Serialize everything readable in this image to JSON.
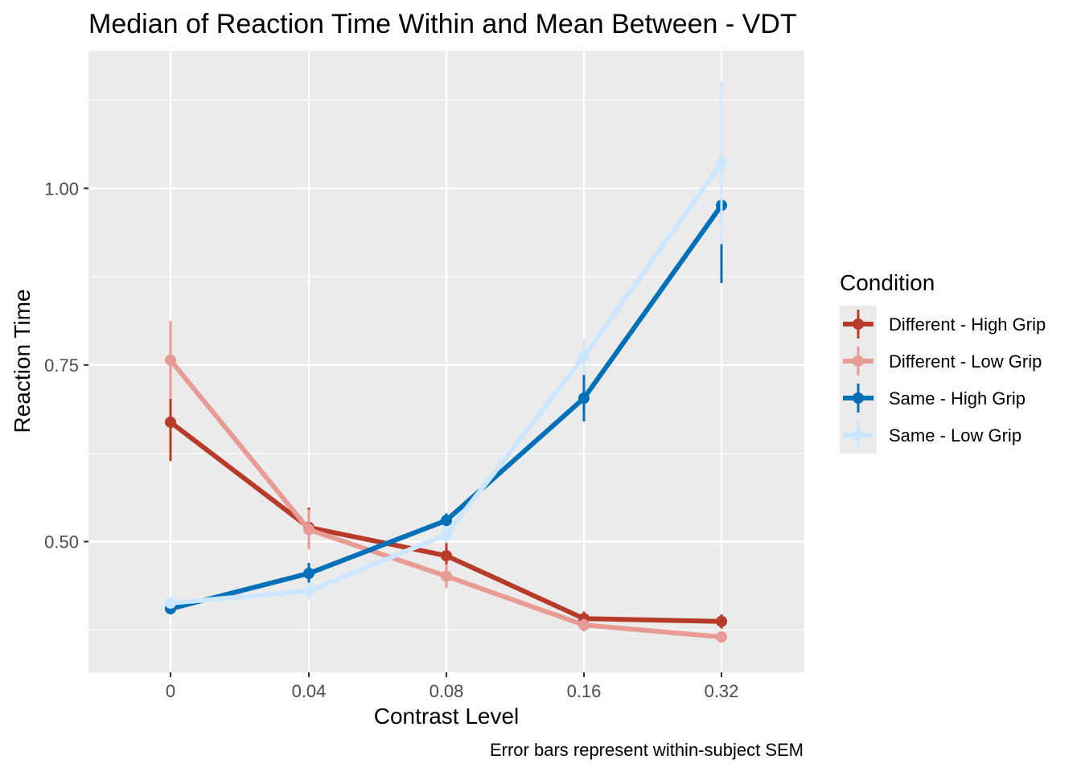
{
  "chart_data": {
    "type": "line",
    "title": "Median of Reaction Time Within and Mean Between - VDT",
    "xlabel": "Contrast Level",
    "ylabel": "Reaction Time",
    "caption": "Error bars represent within-subject SEM",
    "categories": [
      "0",
      "0.04",
      "0.08",
      "0.16",
      "0.32"
    ],
    "ylim": [
      0.315,
      1.195
    ],
    "yticks": [
      0.5,
      0.75,
      1.0
    ],
    "ytick_labels": [
      "0.50",
      "0.75",
      "1.00"
    ],
    "grid": true,
    "legend": {
      "title": "Condition",
      "placement": "right"
    },
    "series": [
      {
        "name": "Different - High Grip",
        "color": "#b83b2a",
        "values": [
          0.669,
          0.52,
          0.48,
          0.391,
          0.387
        ],
        "errors": [
          0.055,
          0.028,
          0.022,
          0.01,
          0.01
        ]
      },
      {
        "name": "Different - Low Grip",
        "color": "#e89a95",
        "values": [
          0.757,
          0.517,
          0.451,
          0.382,
          0.365
        ],
        "errors": [
          0.055,
          0.028,
          0.017,
          0.009,
          0.008
        ]
      },
      {
        "name": "Same - High Grip",
        "color": "#0070b8",
        "values": [
          0.405,
          0.455,
          0.53,
          0.703,
          0.976
        ],
        "errors": [
          0.008,
          0.015,
          0.01,
          0.033,
          0.11
        ]
      },
      {
        "name": "Same - Low Grip",
        "color": "#cce6ff",
        "values": [
          0.413,
          0.43,
          0.51,
          0.762,
          1.036
        ],
        "errors": [
          0.008,
          0.012,
          0.012,
          0.025,
          0.115
        ]
      }
    ]
  }
}
